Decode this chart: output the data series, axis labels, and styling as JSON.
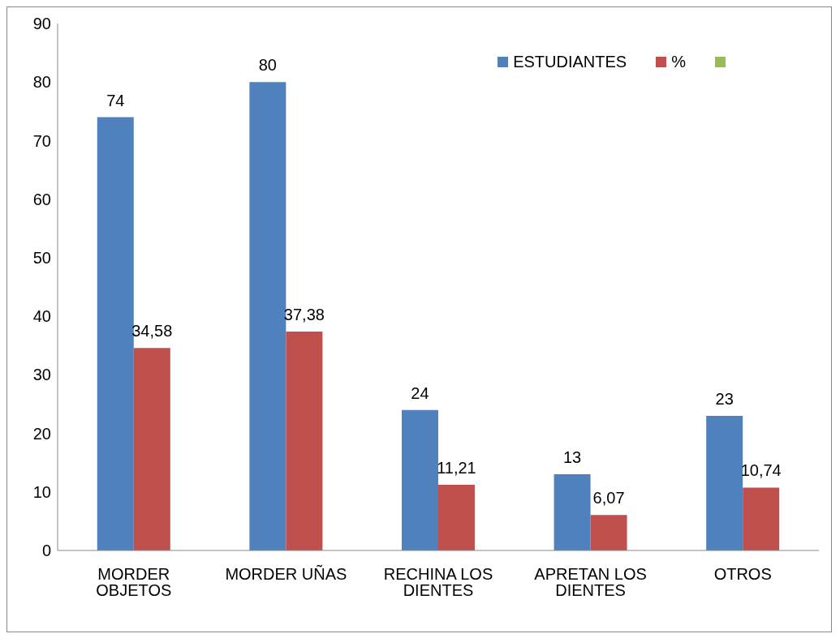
{
  "chart_data": {
    "type": "bar",
    "categories": [
      "MORDER OBJETOS",
      "MORDER UÑAS",
      "RECHINA LOS DIENTES",
      "APRETAN LOS DIENTES",
      "OTROS"
    ],
    "series": [
      {
        "name": "ESTUDIANTES",
        "color": "#4f81bd",
        "values": [
          74,
          80,
          24,
          13,
          23
        ],
        "value_labels": [
          "74",
          "80",
          "24",
          "13",
          "23"
        ]
      },
      {
        "name": "%",
        "color": "#c0504d",
        "values": [
          34.58,
          37.38,
          11.21,
          6.07,
          10.74
        ],
        "value_labels": [
          "34,58",
          "37,38",
          "11,21",
          "6,07",
          "10,74"
        ]
      }
    ],
    "ylim": [
      0,
      90
    ],
    "yticks": [
      0,
      10,
      20,
      30,
      40,
      50,
      60,
      70,
      80,
      90
    ],
    "grid": false,
    "legend": "top right"
  }
}
